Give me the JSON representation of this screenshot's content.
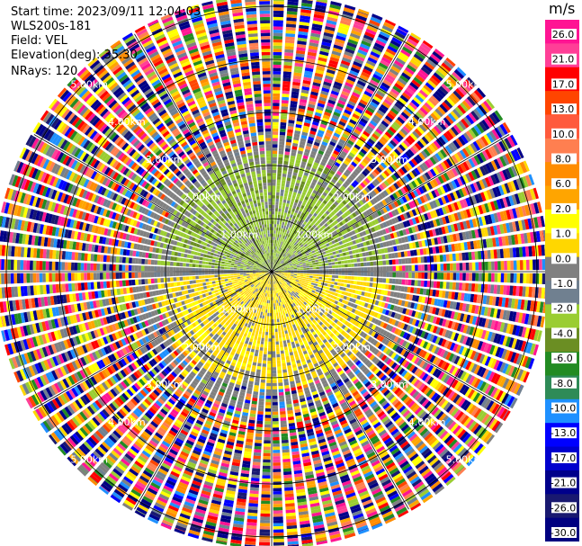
{
  "header": {
    "start_time": "Start time: 2023/09/11 12:04:03",
    "instrument": "WLS200s-181",
    "field": "Field: VEL",
    "elevation": "Elevation(deg): 35.30",
    "nrays": "NRays: 120"
  },
  "colorbar": {
    "unit": "m/s",
    "ticks": [
      "26.0",
      "21.0",
      "17.0",
      "13.0",
      "10.0",
      "8.0",
      "6.0",
      "2.0",
      "1.0",
      "0.0",
      "-1.0",
      "-2.0",
      "-4.0",
      "-6.0",
      "-8.0",
      "-10.0",
      "-13.0",
      "-17.0",
      "-21.0",
      "-26.0",
      "-30.0"
    ],
    "colors": [
      "#ff1493",
      "#ff3f97",
      "#ff0000",
      "#ff4500",
      "#ff5a3c",
      "#ff7f50",
      "#ff8c00",
      "#ffa500",
      "#ffff00",
      "#ffd700",
      "#808080",
      "#708090",
      "#9acd32",
      "#6b8e23",
      "#228b22",
      "#2e8b57",
      "#1e90ff",
      "#0000ff",
      "#0000cd",
      "#00008b",
      "#191970",
      "#000080"
    ]
  },
  "chart_data": {
    "type": "heatmap",
    "projection": "polar-ppi",
    "field": "VEL",
    "units": "m/s",
    "nrays": 120,
    "elevation_deg": 35.3,
    "range_rings_km": [
      1.0,
      2.0,
      3.0,
      4.0,
      5.0
    ],
    "ring_labels": [
      "1.00km",
      "2.00km",
      "3.00km",
      "4.00km",
      "5.00km"
    ],
    "vmin": -30.0,
    "vmax": 26.0,
    "valid_range_km": 2.2,
    "max_range_km": 5.3,
    "pattern": "Negative (green, -1 to -4 m/s) in northern half within ~2.2 km; positive (yellow, 1-2 m/s) in southern half within ~2.2 km; noise beyond."
  }
}
